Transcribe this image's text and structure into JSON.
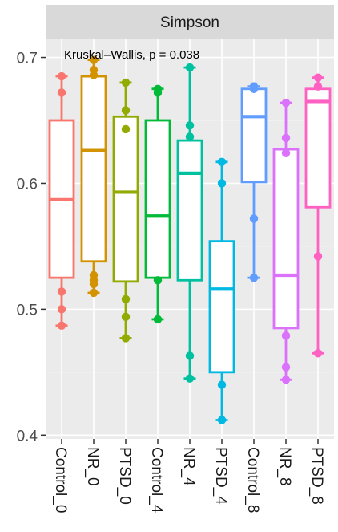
{
  "chart_data": {
    "type": "boxplot",
    "facet_title": "Simpson",
    "annotation": "Kruskal–Wallis, p = 0.038",
    "ylim": [
      0.397,
      0.715
    ],
    "y_ticks": [
      0.4,
      0.5,
      0.6,
      0.7
    ],
    "y_tick_labels": [
      "0.4",
      "0.5",
      "0.6",
      "0.7"
    ],
    "grid": true,
    "legend": "none",
    "categories": [
      "Control_0",
      "NR_0",
      "PTSD_0",
      "Control_4",
      "NR_4",
      "PTSD_4",
      "Control_8",
      "NR_8",
      "PTSD_8"
    ],
    "series": [
      {
        "color": "#F8766D",
        "q1": 0.525,
        "median": 0.587,
        "q3": 0.65,
        "whisker_low": 0.487,
        "whisker_high": 0.685,
        "points": [
          0.685,
          0.672,
          0.514,
          0.5,
          0.487
        ]
      },
      {
        "color": "#D39200",
        "q1": 0.538,
        "median": 0.626,
        "q3": 0.685,
        "whisker_low": 0.513,
        "whisker_high": 0.698,
        "points": [
          0.698,
          0.69,
          0.686,
          0.527,
          0.523,
          0.52,
          0.513
        ]
      },
      {
        "color": "#93AA00",
        "q1": 0.522,
        "median": 0.593,
        "q3": 0.653,
        "whisker_low": 0.477,
        "whisker_high": 0.68,
        "points": [
          0.68,
          0.658,
          0.643,
          0.508,
          0.494,
          0.477
        ]
      },
      {
        "color": "#00BA38",
        "q1": 0.525,
        "median": 0.574,
        "q3": 0.65,
        "whisker_low": 0.492,
        "whisker_high": 0.675,
        "points": [
          0.675,
          0.672,
          0.523,
          0.492
        ]
      },
      {
        "color": "#00C19F",
        "q1": 0.523,
        "median": 0.608,
        "q3": 0.634,
        "whisker_low": 0.445,
        "whisker_high": 0.692,
        "points": [
          0.692,
          0.646,
          0.637,
          0.463,
          0.445
        ]
      },
      {
        "color": "#00B9E3",
        "q1": 0.45,
        "median": 0.516,
        "q3": 0.554,
        "whisker_low": 0.412,
        "whisker_high": 0.617,
        "points": [
          0.617,
          0.6,
          0.44,
          0.412
        ]
      },
      {
        "color": "#619CFF",
        "q1": 0.601,
        "median": 0.653,
        "q3": 0.675,
        "whisker_low": 0.525,
        "whisker_high": 0.677,
        "points": [
          0.677,
          0.675,
          0.572,
          0.525
        ]
      },
      {
        "color": "#DB72FB",
        "q1": 0.485,
        "median": 0.527,
        "q3": 0.627,
        "whisker_low": 0.444,
        "whisker_high": 0.664,
        "points": [
          0.664,
          0.636,
          0.624,
          0.479,
          0.454,
          0.444
        ]
      },
      {
        "color": "#FF61C3",
        "q1": 0.581,
        "median": 0.665,
        "q3": 0.675,
        "whisker_low": 0.465,
        "whisker_high": 0.684,
        "points": [
          0.684,
          0.677,
          0.542,
          0.465
        ]
      }
    ]
  }
}
